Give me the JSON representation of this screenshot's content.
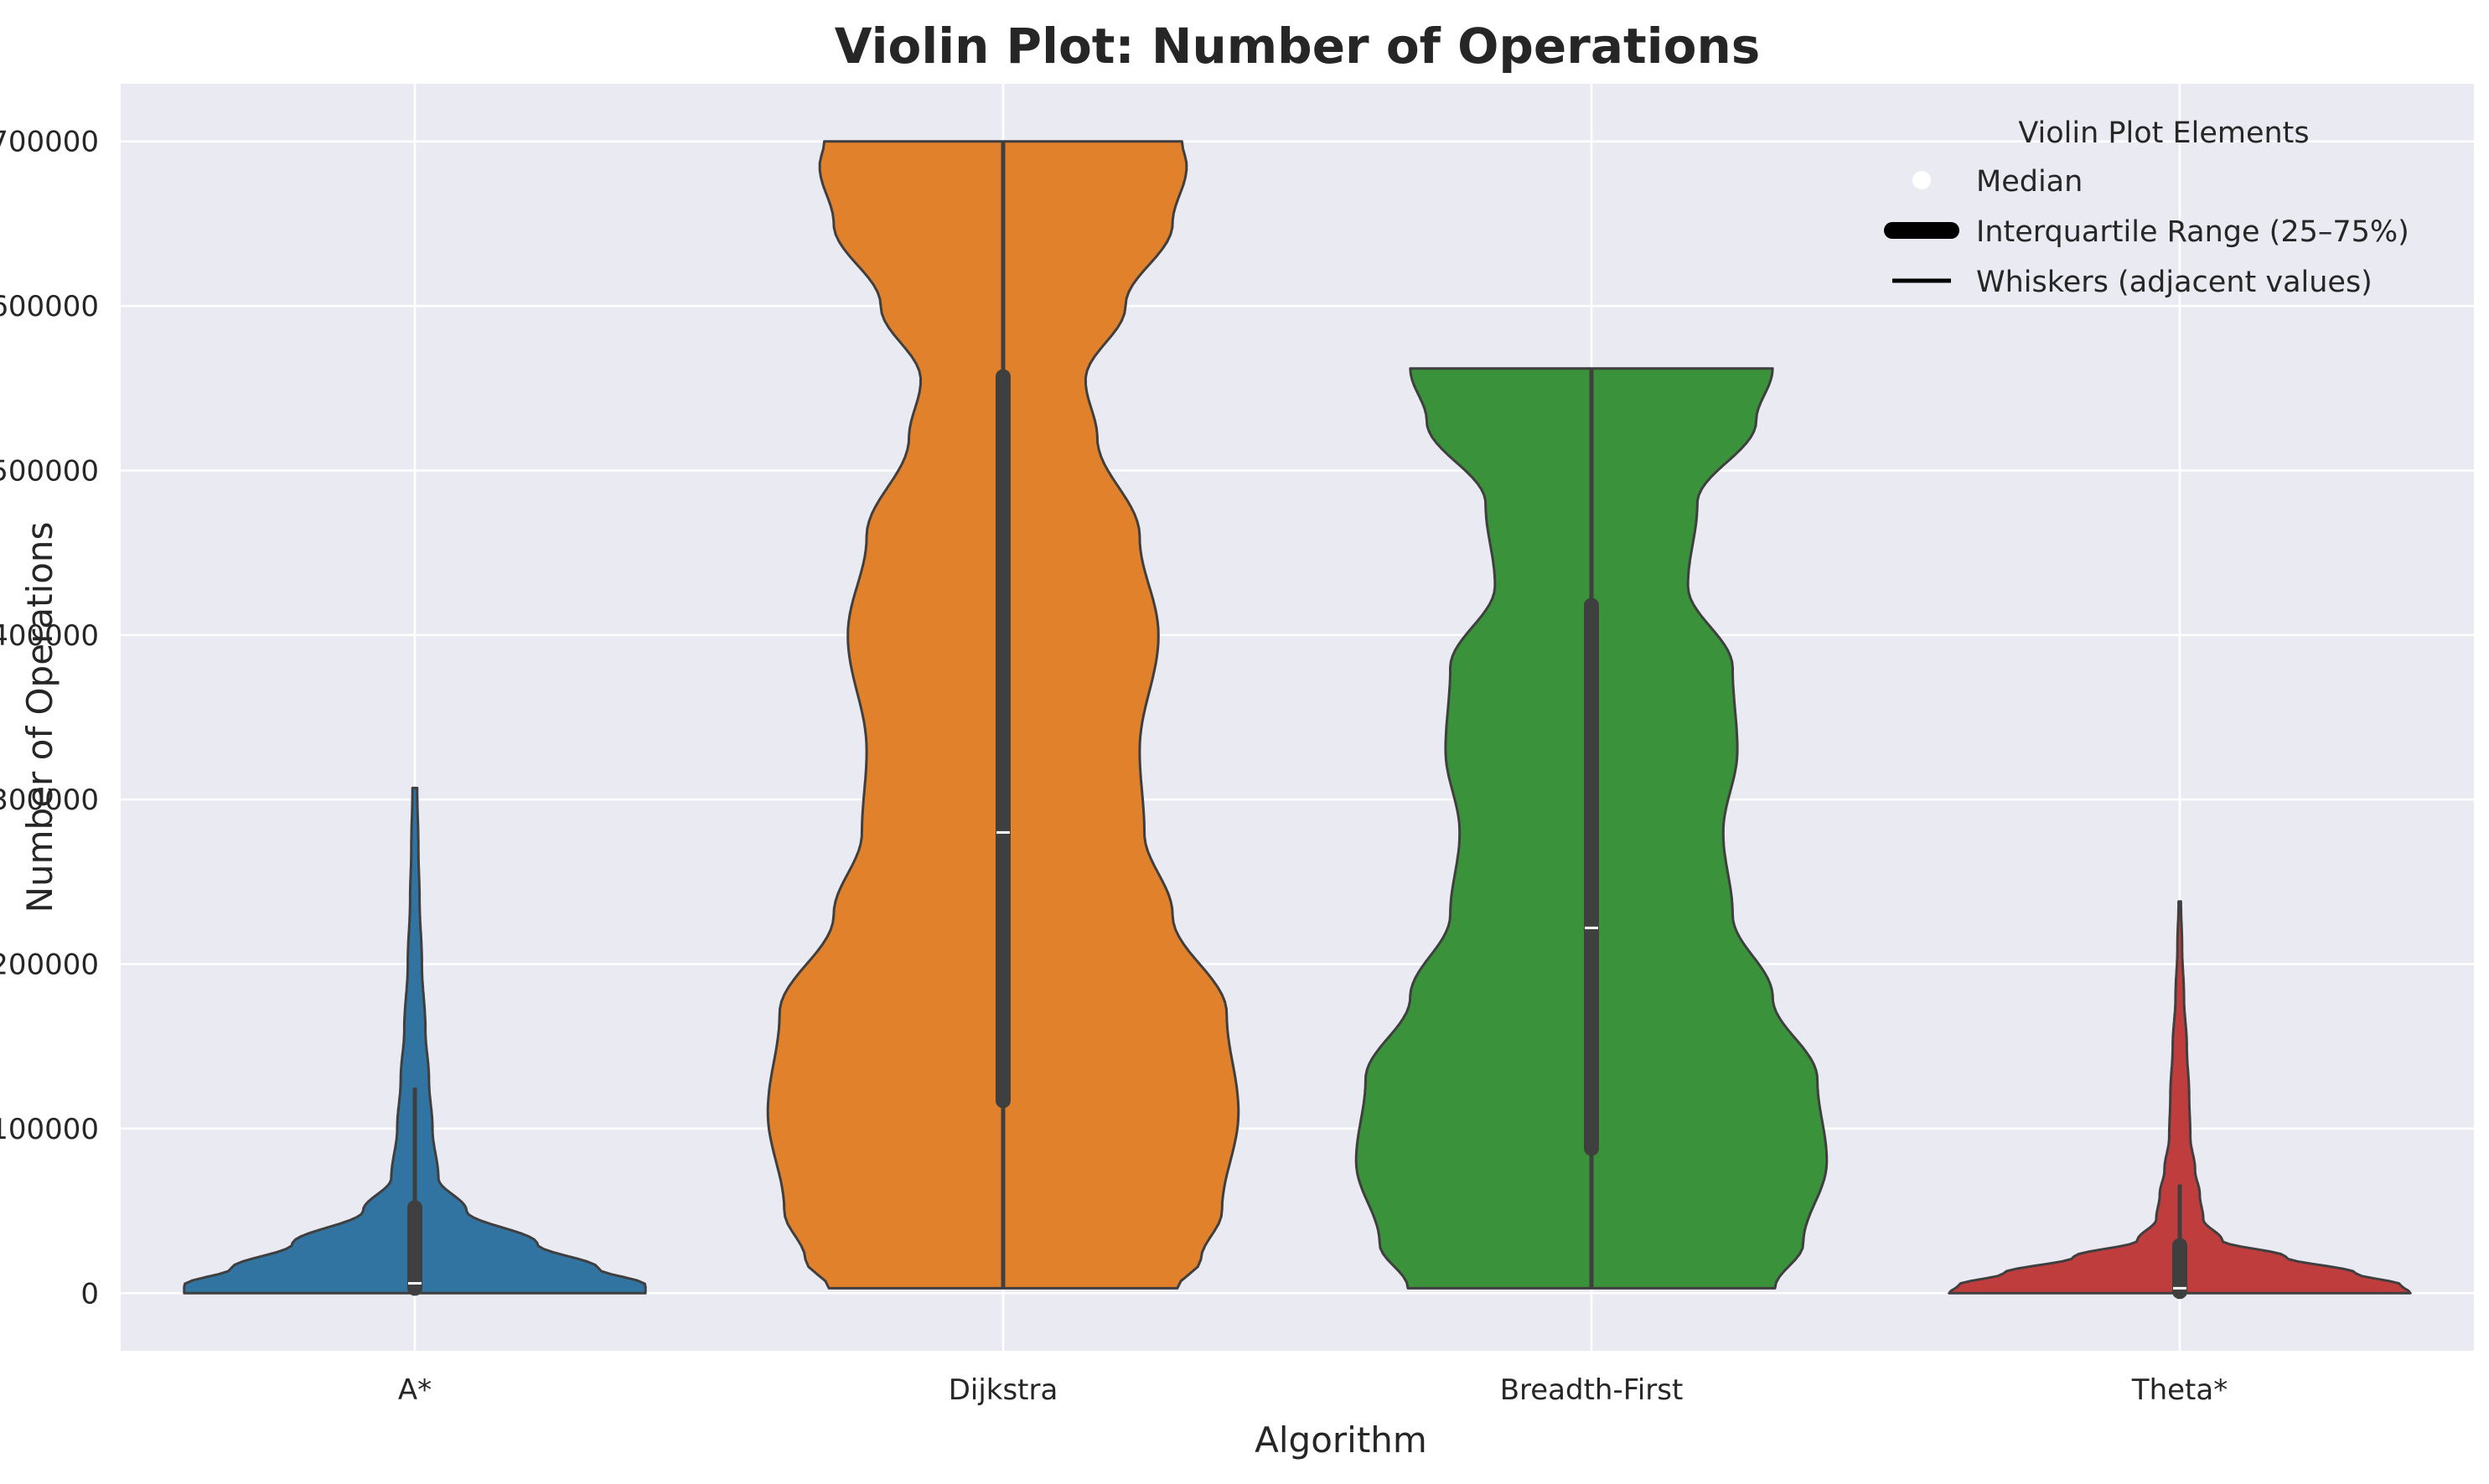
{
  "chart_data": {
    "type": "violin",
    "title": "Violin Plot: Number of Operations",
    "xlabel": "Algorithm",
    "ylabel": "Number of Operations",
    "ylim": [
      -35000,
      735000
    ],
    "yticks": [
      0,
      100000,
      200000,
      300000,
      400000,
      500000,
      600000,
      700000
    ],
    "ytick_labels": [
      "0",
      "100000",
      "200000",
      "300000",
      "400000",
      "500000",
      "600000",
      "700000"
    ],
    "grid": true,
    "categories": [
      "A*",
      "Dijkstra",
      "Breadth-First",
      "Theta*"
    ],
    "series": [
      {
        "name": "A*",
        "color": "#3274a1",
        "min": 0,
        "q1": 3000,
        "median": 6000,
        "q3": 52000,
        "whisker_low": 0,
        "whisker_high": 125000,
        "violin_min": 0,
        "violin_max": 307000,
        "profile": [
          [
            0,
            0.98
          ],
          [
            5000,
            0.98
          ],
          [
            15000,
            0.78
          ],
          [
            30000,
            0.52
          ],
          [
            50000,
            0.22
          ],
          [
            70000,
            0.1
          ],
          [
            100000,
            0.075
          ],
          [
            130000,
            0.06
          ],
          [
            160000,
            0.045
          ],
          [
            200000,
            0.03
          ],
          [
            240000,
            0.02
          ],
          [
            270000,
            0.015
          ],
          [
            307000,
            0.01
          ]
        ]
      },
      {
        "name": "Dijkstra",
        "color": "#e1812c",
        "min": 3000,
        "q1": 117000,
        "median": 280000,
        "q3": 557000,
        "whisker_low": 3000,
        "whisker_high": 700000,
        "violin_min": 3000,
        "violin_max": 700000,
        "profile": [
          [
            3000,
            0.74
          ],
          [
            20000,
            0.84
          ],
          [
            50000,
            0.93
          ],
          [
            110000,
            1.0
          ],
          [
            170000,
            0.95
          ],
          [
            230000,
            0.72
          ],
          [
            280000,
            0.6
          ],
          [
            330000,
            0.58
          ],
          [
            400000,
            0.66
          ],
          [
            460000,
            0.58
          ],
          [
            520000,
            0.4
          ],
          [
            555000,
            0.35
          ],
          [
            600000,
            0.52
          ],
          [
            650000,
            0.72
          ],
          [
            685000,
            0.78
          ],
          [
            700000,
            0.76
          ]
        ]
      },
      {
        "name": "Breadth-First",
        "color": "#3a923a",
        "min": 3000,
        "q1": 88000,
        "median": 222000,
        "q3": 418000,
        "whisker_low": 3000,
        "whisker_high": 562000,
        "violin_min": 3000,
        "violin_max": 562000,
        "profile": [
          [
            3000,
            0.78
          ],
          [
            30000,
            0.9
          ],
          [
            80000,
            1.0
          ],
          [
            130000,
            0.96
          ],
          [
            180000,
            0.77
          ],
          [
            230000,
            0.6
          ],
          [
            280000,
            0.56
          ],
          [
            330000,
            0.62
          ],
          [
            380000,
            0.6
          ],
          [
            430000,
            0.41
          ],
          [
            480000,
            0.45
          ],
          [
            530000,
            0.7
          ],
          [
            562000,
            0.77
          ]
        ]
      },
      {
        "name": "Theta*",
        "color": "#c03d3e",
        "min": 0,
        "q1": 1000,
        "median": 3000,
        "q3": 29000,
        "whisker_low": 0,
        "whisker_high": 66000,
        "violin_min": 0,
        "violin_max": 238000,
        "profile": [
          [
            0,
            0.98
          ],
          [
            5000,
            0.94
          ],
          [
            12000,
            0.75
          ],
          [
            22000,
            0.45
          ],
          [
            32000,
            0.18
          ],
          [
            45000,
            0.1
          ],
          [
            60000,
            0.085
          ],
          [
            75000,
            0.065
          ],
          [
            95000,
            0.045
          ],
          [
            120000,
            0.04
          ],
          [
            150000,
            0.03
          ],
          [
            180000,
            0.018
          ],
          [
            210000,
            0.01
          ],
          [
            238000,
            0.005
          ]
        ]
      }
    ],
    "legend": {
      "title": "Violin Plot Elements",
      "placement": "top-right",
      "entries": [
        {
          "label": "Median",
          "icon": "median-dot-icon"
        },
        {
          "label": "Interquartile Range (25–75%)",
          "icon": "iqr-bar-icon"
        },
        {
          "label": "Whiskers (adjacent values)",
          "icon": "whisker-line-icon"
        }
      ]
    }
  }
}
